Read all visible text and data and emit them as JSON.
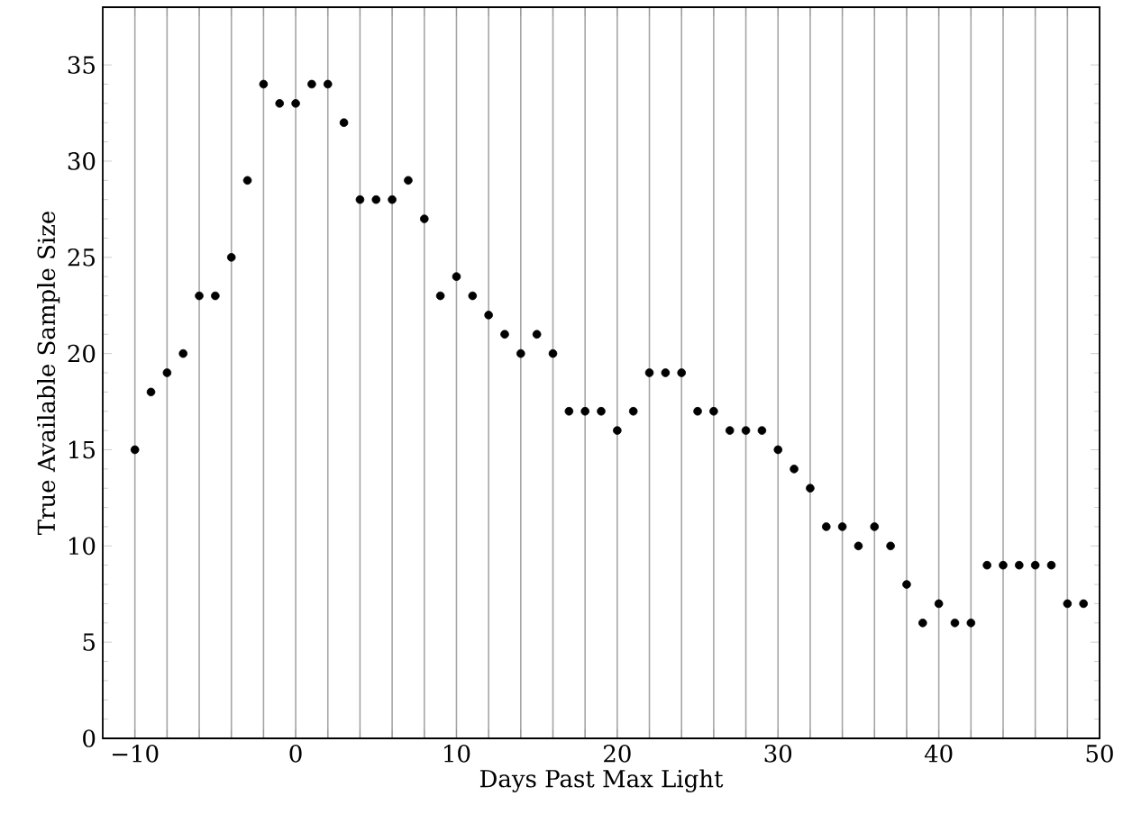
{
  "chart_data": {
    "type": "scatter",
    "xlabel": "Days Past Max Light",
    "ylabel": "True Available Sample Size",
    "x": [
      -10,
      -9,
      -8,
      -7,
      -6,
      -5,
      -4,
      -3,
      -2,
      -1,
      0,
      1,
      2,
      3,
      4,
      5,
      6,
      7,
      8,
      9,
      10,
      11,
      12,
      13,
      14,
      15,
      16,
      17,
      18,
      19,
      20,
      21,
      22,
      23,
      24,
      25,
      26,
      27,
      28,
      29,
      30,
      31,
      32,
      33,
      34,
      35,
      36,
      37,
      38,
      39,
      40,
      41,
      42,
      43,
      44,
      45,
      46,
      47,
      48,
      49
    ],
    "series": [
      {
        "color": "#000000",
        "values": [
          15,
          18,
          19,
          20,
          23,
          23,
          25,
          29,
          34,
          33,
          33,
          34,
          34,
          32,
          28,
          28,
          28,
          29,
          27,
          23,
          24,
          23,
          22,
          21,
          20,
          21,
          20,
          17,
          17,
          17,
          16,
          17,
          19,
          19,
          19,
          17,
          17,
          16,
          16,
          16,
          15,
          14,
          13,
          11,
          11,
          10,
          11,
          10,
          8,
          6,
          7,
          6,
          6,
          9,
          9,
          9,
          9,
          9,
          7,
          7
        ]
      }
    ],
    "xlim": [
      -12,
      50
    ],
    "ylim": [
      0,
      38
    ],
    "xticks": [
      {
        "value": -10,
        "label": "−10"
      },
      {
        "value": -8,
        "label": null
      },
      {
        "value": -6,
        "label": null
      },
      {
        "value": -4,
        "label": null
      },
      {
        "value": -2,
        "label": null
      },
      0,
      {
        "value": 2,
        "label": null
      },
      {
        "value": 4,
        "label": null
      },
      {
        "value": 6,
        "label": null
      },
      {
        "value": 8,
        "label": null
      },
      10,
      {
        "value": 12,
        "label": null
      },
      {
        "value": 14,
        "label": null
      },
      {
        "value": 16,
        "label": null
      },
      {
        "value": 18,
        "label": null
      },
      20,
      {
        "value": 22,
        "label": null
      },
      {
        "value": 24,
        "label": null
      },
      {
        "value": 26,
        "label": null
      },
      {
        "value": 28,
        "label": null
      },
      30,
      {
        "value": 32,
        "label": null
      },
      {
        "value": 34,
        "label": null
      },
      {
        "value": 36,
        "label": null
      },
      {
        "value": 38,
        "label": null
      },
      40,
      {
        "value": 42,
        "label": null
      },
      {
        "value": 44,
        "label": null
      },
      {
        "value": 46,
        "label": null
      },
      {
        "value": 48,
        "label": null
      },
      50
    ],
    "yticks": [
      0,
      5,
      10,
      15,
      20,
      25,
      30,
      35
    ],
    "grid": "x"
  }
}
